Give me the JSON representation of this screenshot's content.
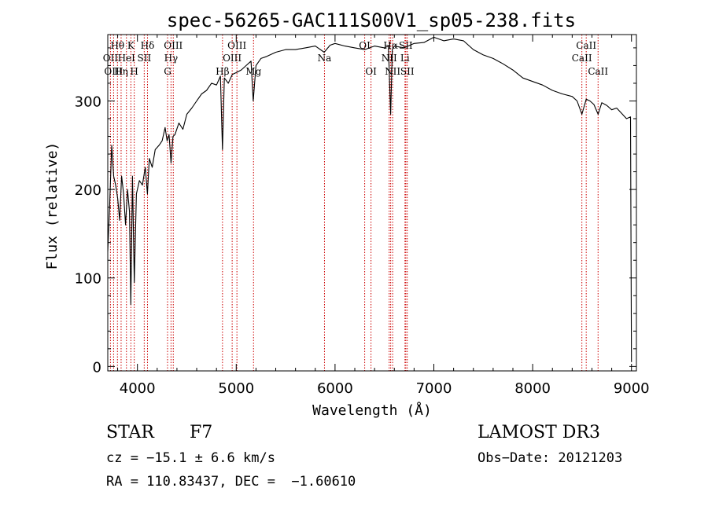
{
  "chart_data": {
    "type": "line",
    "title": "spec-56265-GAC111S00V1_sp05-238.fits",
    "xlabel": "Wavelength (Å)",
    "ylabel": "Flux (relative)",
    "xlim": [
      3700,
      9050
    ],
    "ylim": [
      -5,
      375
    ],
    "xticks": [
      4000,
      5000,
      6000,
      7000,
      8000,
      9000
    ],
    "yticks": [
      0,
      100,
      200,
      300
    ],
    "grid": false,
    "series": [
      {
        "name": "spectrum",
        "x": [
          3700,
          3720,
          3740,
          3760,
          3780,
          3800,
          3820,
          3840,
          3860,
          3880,
          3900,
          3920,
          3933,
          3950,
          3968,
          3990,
          4020,
          4050,
          4080,
          4101,
          4120,
          4150,
          4180,
          4220,
          4250,
          4280,
          4300,
          4320,
          4340,
          4360,
          4380,
          4420,
          4460,
          4500,
          4550,
          4600,
          4650,
          4700,
          4750,
          4800,
          4840,
          4861,
          4880,
          4920,
          4960,
          5000,
          5050,
          5100,
          5150,
          5172,
          5200,
          5250,
          5300,
          5400,
          5500,
          5600,
          5700,
          5800,
          5890,
          5950,
          6000,
          6100,
          6200,
          6300,
          6400,
          6500,
          6540,
          6563,
          6580,
          6600,
          6700,
          6800,
          6900,
          7000,
          7100,
          7200,
          7300,
          7400,
          7500,
          7600,
          7700,
          7800,
          7900,
          8000,
          8100,
          8200,
          8300,
          8400,
          8450,
          8498,
          8542,
          8580,
          8620,
          8662,
          8700,
          8750,
          8800,
          8850,
          8900,
          8950,
          8990,
          9000
        ],
        "y": [
          130,
          185,
          250,
          215,
          205,
          190,
          165,
          215,
          195,
          160,
          200,
          175,
          70,
          215,
          95,
          195,
          210,
          205,
          225,
          195,
          235,
          225,
          245,
          250,
          255,
          270,
          255,
          262,
          230,
          260,
          262,
          275,
          268,
          285,
          292,
          300,
          308,
          312,
          320,
          318,
          328,
          245,
          326,
          320,
          330,
          332,
          335,
          340,
          345,
          300,
          340,
          348,
          350,
          355,
          358,
          358,
          360,
          362,
          355,
          363,
          365,
          362,
          360,
          358,
          362,
          360,
          362,
          285,
          358,
          362,
          360,
          365,
          366,
          372,
          368,
          370,
          368,
          358,
          352,
          348,
          342,
          335,
          326,
          322,
          318,
          312,
          308,
          305,
          300,
          285,
          302,
          300,
          296,
          285,
          298,
          295,
          290,
          292,
          286,
          280,
          282,
          5
        ]
      }
    ],
    "line_markers": [
      {
        "label": "Hθ",
        "x": 3798,
        "row": 1
      },
      {
        "label": "OII",
        "x": 3727,
        "row": 2
      },
      {
        "label": "OIII",
        "x": 3759,
        "row": 3
      },
      {
        "label": "K",
        "x": 3934,
        "row": 1
      },
      {
        "label": "HeI",
        "x": 3889,
        "row": 2
      },
      {
        "label": "Hη",
        "x": 3835,
        "row": 3
      },
      {
        "label": "SII",
        "x": 4069,
        "row": 2
      },
      {
        "label": "H",
        "x": 3968,
        "row": 3
      },
      {
        "label": "Hδ",
        "x": 4102,
        "row": 1
      },
      {
        "label": "OIII",
        "x": 4363,
        "row": 1
      },
      {
        "label": "Hγ",
        "x": 4340,
        "row": 2
      },
      {
        "label": "G",
        "x": 4305,
        "row": 3
      },
      {
        "label": "OIII",
        "x": 5007,
        "row": 1
      },
      {
        "label": "OIII",
        "x": 4959,
        "row": 2
      },
      {
        "label": "Hβ",
        "x": 4861,
        "row": 3
      },
      {
        "label": "Mg",
        "x": 5175,
        "row": 3
      },
      {
        "label": "Na",
        "x": 5893,
        "row": 2
      },
      {
        "label": "OI",
        "x": 6300,
        "row": 1
      },
      {
        "label": "NII",
        "x": 6548,
        "row": 2
      },
      {
        "label": "OI",
        "x": 6364,
        "row": 3
      },
      {
        "label": "Hα",
        "x": 6563,
        "row": 1
      },
      {
        "label": "NII",
        "x": 6583,
        "row": 3
      },
      {
        "label": "SII",
        "x": 6716,
        "row": 1
      },
      {
        "label": "Li",
        "x": 6708,
        "row": 2
      },
      {
        "label": "SII",
        "x": 6731,
        "row": 3
      },
      {
        "label": "CaII",
        "x": 8542,
        "row": 1
      },
      {
        "label": "CaII",
        "x": 8498,
        "row": 2
      },
      {
        "label": "CaII",
        "x": 8662,
        "row": 3
      }
    ]
  },
  "info": {
    "object_class": "STAR",
    "subclass": "F7",
    "cz": "cz = −15.1 ± 6.6 km/s",
    "coords": "RA = 110.83437, DEC =  −1.60610",
    "survey": "LAMOST DR3",
    "obs_date": "Obs−Date: 20121203"
  },
  "colors": {
    "spectrum": "#000000",
    "marker_line": "#cc0000",
    "axis": "#000000"
  }
}
